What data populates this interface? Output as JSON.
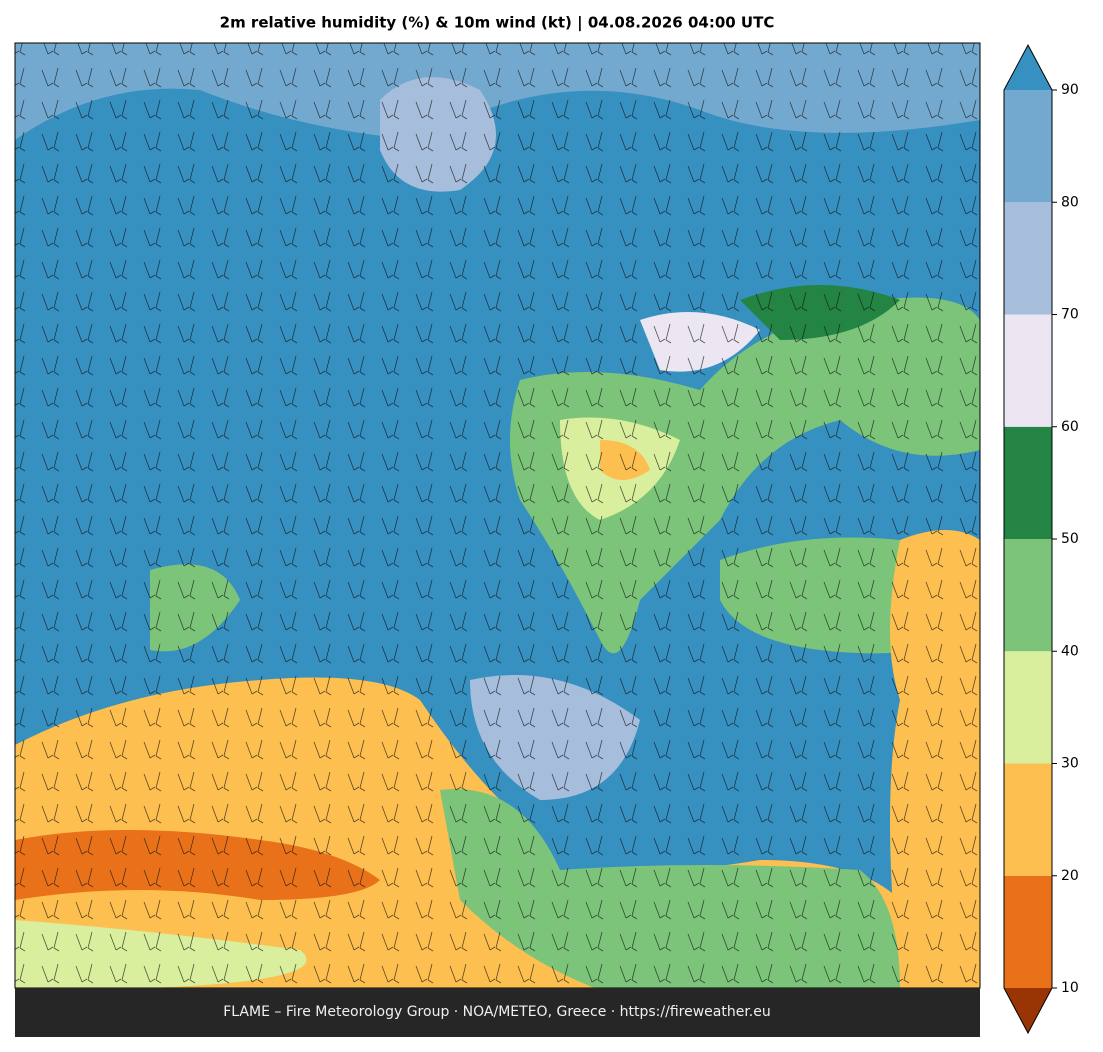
{
  "title": "2m relative humidity (%) & 10m wind (kt)  |  04.08.2026 04:00 UTC",
  "footer": "FLAME – Fire Meteorology Group · NOA/METEO, Greece · https://fireweather.eu",
  "colorbar": {
    "ticks": [
      10,
      20,
      30,
      40,
      50,
      60,
      70,
      80,
      90
    ],
    "colors": [
      "#e8711a",
      "#fdbf4f",
      "#d9ef9e",
      "#7bc47a",
      "#238443",
      "#ebe6f1",
      "#a6bddb",
      "#74a9cf"
    ],
    "under_color": "#993404",
    "over_color": "#3690c0"
  }
}
